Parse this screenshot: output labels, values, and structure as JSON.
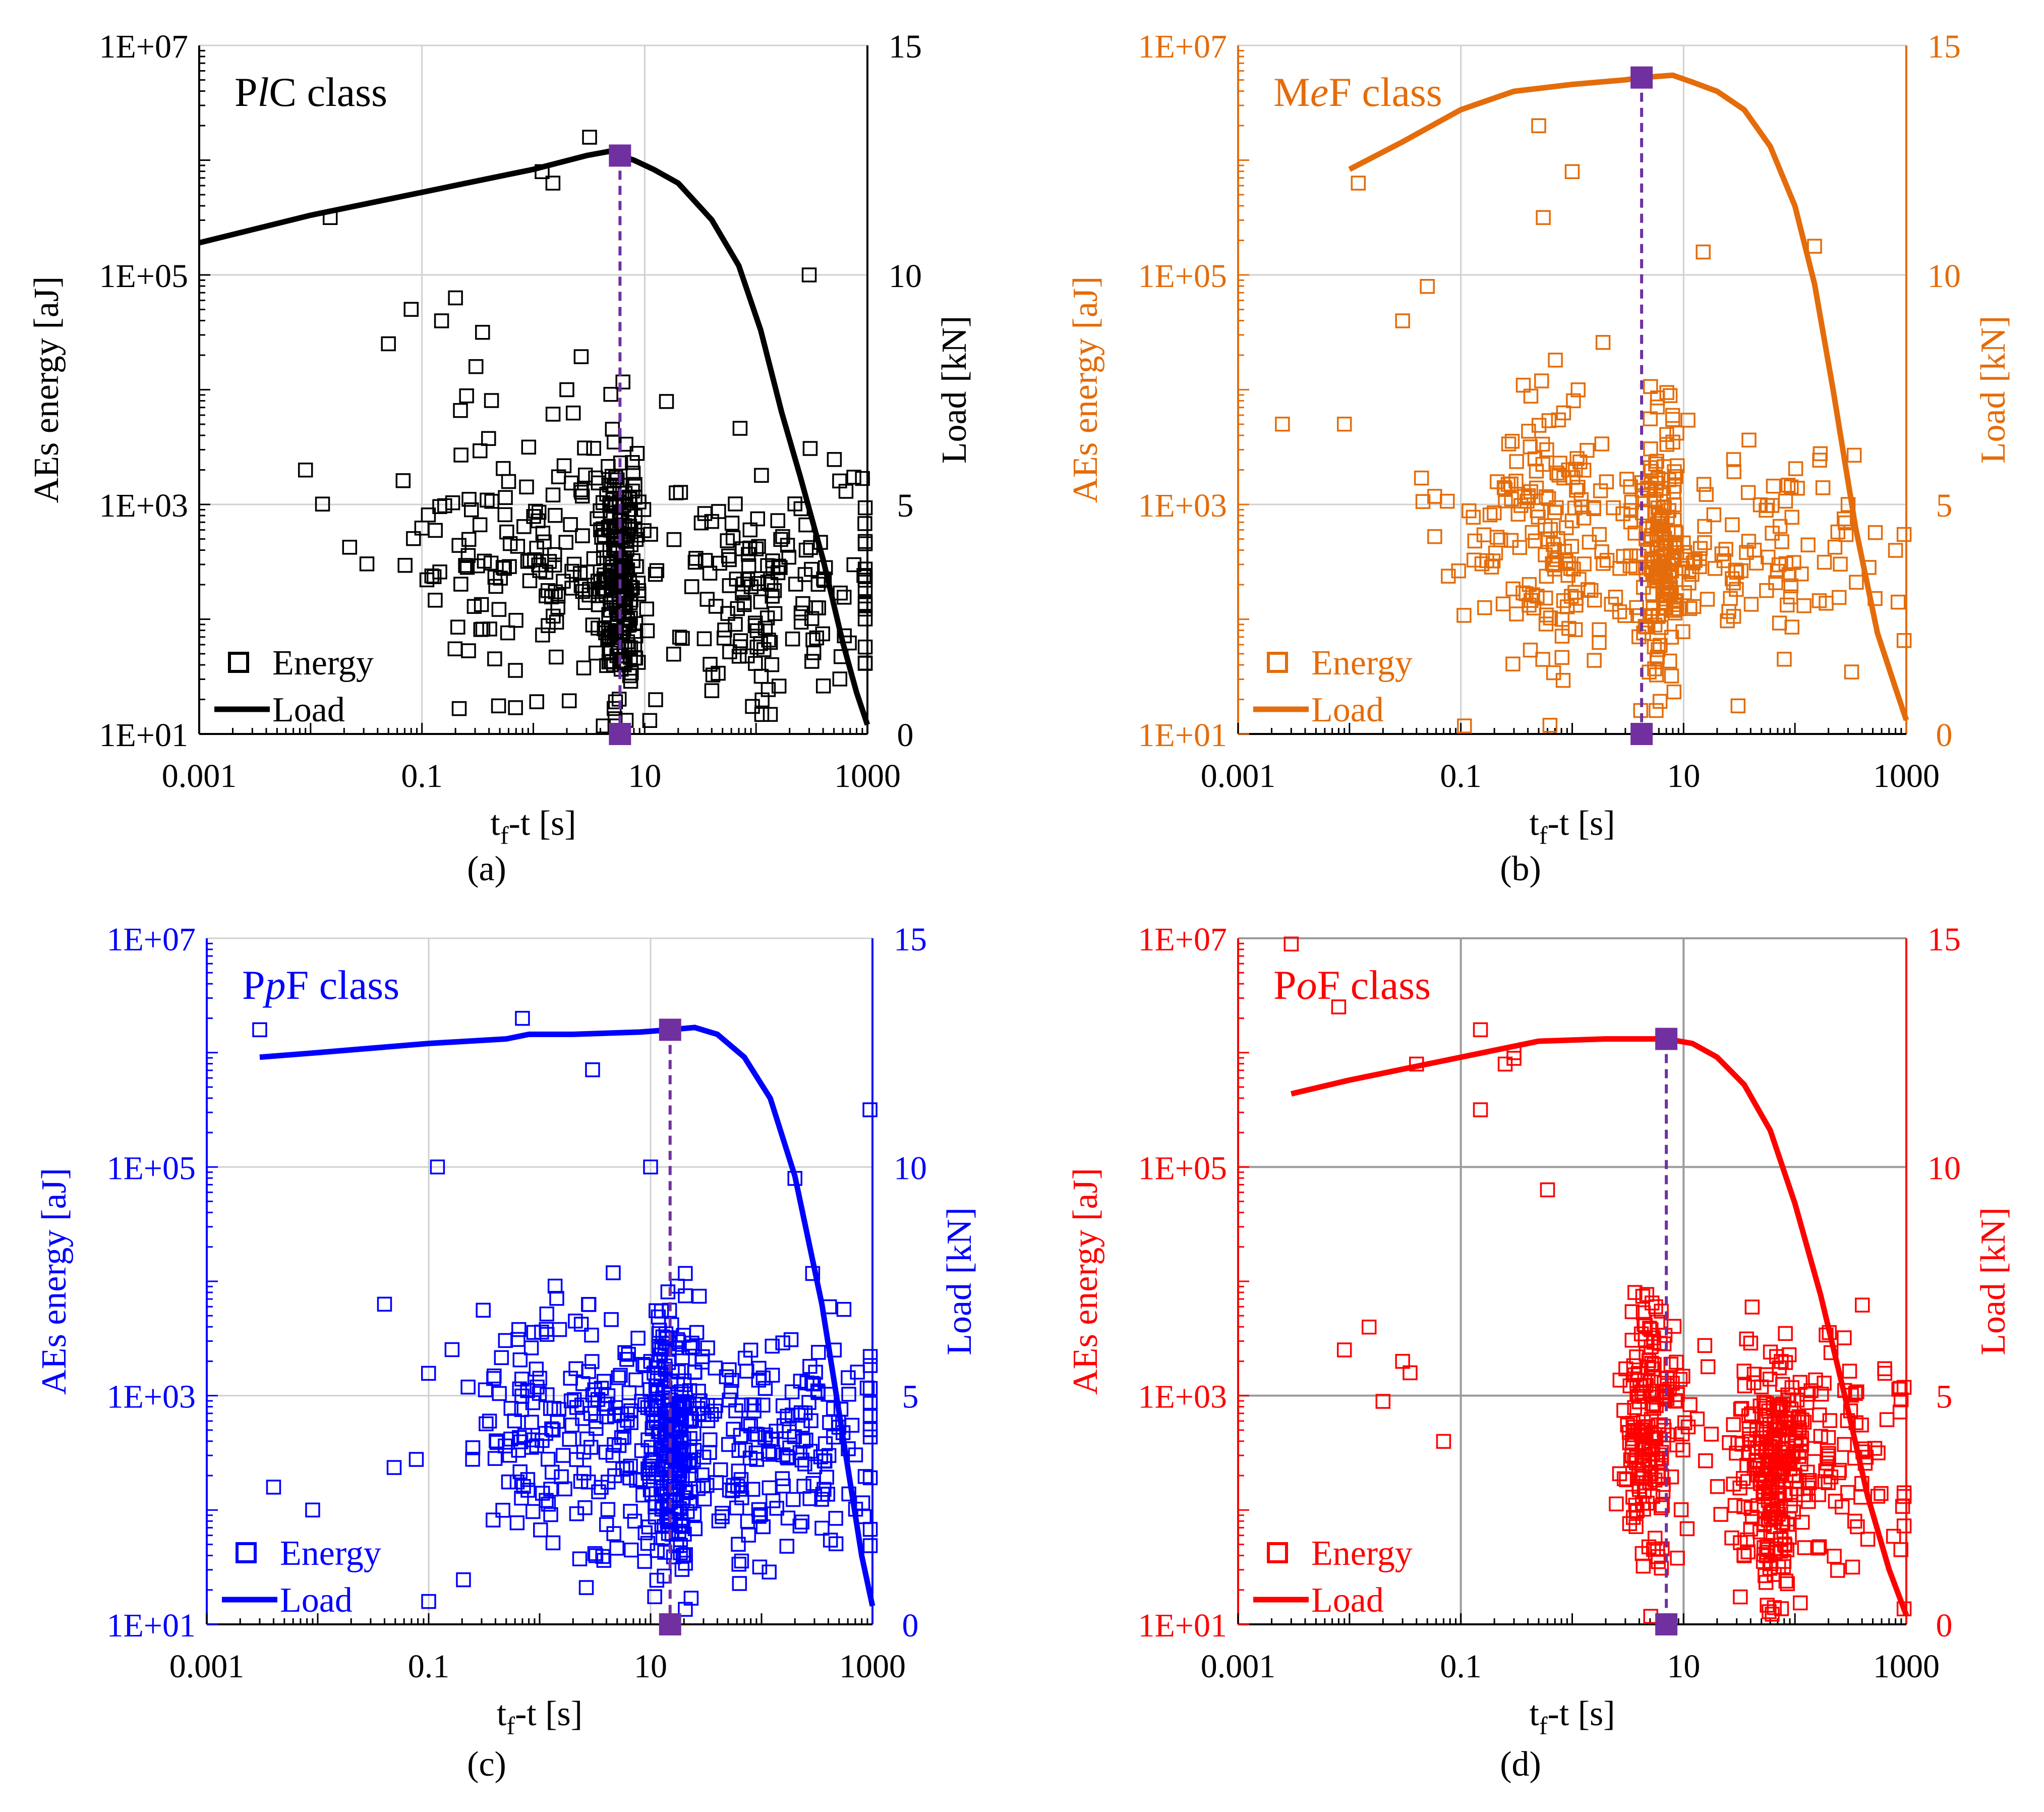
{
  "chart_data": [
    {
      "type": "scatter",
      "panel": "a",
      "caption": "(a)",
      "title_parts": [
        "P",
        "l",
        "C class"
      ],
      "color": "#000000",
      "marker_color": "#000000",
      "peak_line_color": "#7030a0",
      "xlabel": "t_f-t [s]",
      "ylabel_left": "AEs energy [aJ]",
      "ylabel_right": "Load [kN]",
      "x_scale": "log",
      "xlim": [
        0.001,
        1000
      ],
      "y_left_scale": "log",
      "ylim_left": [
        10,
        10000000
      ],
      "ylim_right": [
        0,
        15
      ],
      "x_ticks": [
        "0.001",
        "0.1",
        "10",
        "1000"
      ],
      "y_left_ticks": [
        "1E+01",
        "1E+03",
        "1E+05",
        "1E+07"
      ],
      "y_right_ticks": [
        "0",
        "5",
        "10",
        "15"
      ],
      "grid": "major",
      "legend": {
        "position": "bottom-left",
        "energy": "Energy",
        "load": "Load"
      },
      "peak": {
        "x": 6,
        "load": 12.6
      },
      "series": [
        {
          "name": "Load",
          "kind": "line",
          "x": [
            0.001,
            0.01,
            0.1,
            1,
            3,
            5,
            6,
            8,
            12,
            20,
            40,
            70,
            110,
            170,
            250,
            400,
            600,
            800,
            1000
          ],
          "y": [
            10.7,
            11.3,
            11.8,
            12.3,
            12.6,
            12.7,
            12.6,
            12.5,
            12.3,
            12.0,
            11.2,
            10.2,
            8.8,
            7.0,
            5.6,
            3.8,
            2.0,
            0.9,
            0.2
          ]
        },
        {
          "name": "Energy",
          "kind": "scatter",
          "n": 520,
          "seed": 11,
          "clusters": [
            {
              "center": 6,
              "spread_x": 0.09,
              "weight": 0.42,
              "y_mu": 2.35,
              "y_sd": 0.55
            },
            {
              "center": 1,
              "spread_x": 0.65,
              "weight": 0.32,
              "y_mu": 2.6,
              "y_sd": 0.6
            },
            {
              "center": 150,
              "spread_x": 0.55,
              "weight": 0.26,
              "y_mu": 2.3,
              "y_sd": 0.55
            }
          ],
          "outliers": [
            [
              0.015,
              5.5
            ],
            [
              0.05,
              4.4
            ],
            [
              0.08,
              4.7
            ],
            [
              0.15,
              4.6
            ],
            [
              0.2,
              4.8
            ],
            [
              0.35,
              4.5
            ],
            [
              1.2,
              5.9
            ],
            [
              1.5,
              5.8
            ],
            [
              3.2,
              6.2
            ],
            [
              300,
              5.0
            ],
            [
              0.009,
              3.3
            ],
            [
              2,
              4.0
            ],
            [
              0.6,
              3.2
            ]
          ]
        }
      ]
    },
    {
      "type": "scatter",
      "panel": "b",
      "caption": "(b)",
      "title_parts": [
        "M",
        "e",
        "F class"
      ],
      "color": "#e46c0a",
      "marker_color": "#e46c0a",
      "peak_line_color": "#7030a0",
      "xlabel": "t_f-t [s]",
      "ylabel_left": "AEs energy [aJ]",
      "ylabel_right": "Load [kN]",
      "x_scale": "log",
      "xlim": [
        0.001,
        1000
      ],
      "y_left_scale": "log",
      "ylim_left": [
        10,
        10000000
      ],
      "ylim_right": [
        0,
        15
      ],
      "x_ticks": [
        "0.001",
        "0.1",
        "10",
        "1000"
      ],
      "y_left_ticks": [
        "1E+01",
        "1E+03",
        "1E+05",
        "1E+07"
      ],
      "y_right_ticks": [
        "0",
        "5",
        "10",
        "15"
      ],
      "grid": "major",
      "legend": {
        "position": "bottom-left",
        "energy": "Energy",
        "load": "Load"
      },
      "peak": {
        "x": 4.2,
        "load": 14.3
      },
      "series": [
        {
          "name": "Load",
          "kind": "line",
          "x": [
            0.01,
            0.03,
            0.1,
            0.3,
            1,
            3,
            4.2,
            8,
            12,
            20,
            35,
            60,
            100,
            150,
            220,
            350,
            550,
            800,
            1000
          ],
          "y": [
            12.3,
            12.9,
            13.6,
            14.0,
            14.15,
            14.25,
            14.3,
            14.35,
            14.2,
            14.0,
            13.6,
            12.8,
            11.5,
            9.8,
            7.5,
            4.5,
            2.2,
            1.0,
            0.3
          ]
        },
        {
          "name": "Energy",
          "kind": "scatter",
          "n": 440,
          "seed": 23,
          "clusters": [
            {
              "center": 6.5,
              "spread_x": 0.12,
              "weight": 0.38,
              "y_mu": 2.6,
              "y_sd": 0.55
            },
            {
              "center": 0.6,
              "spread_x": 0.45,
              "weight": 0.37,
              "y_mu": 2.7,
              "y_sd": 0.6
            },
            {
              "center": 60,
              "spread_x": 0.5,
              "weight": 0.25,
              "y_mu": 2.45,
              "y_sd": 0.45
            }
          ],
          "outliers": [
            [
              0.012,
              5.8
            ],
            [
              0.03,
              4.6
            ],
            [
              0.05,
              4.9
            ],
            [
              0.5,
              6.3
            ],
            [
              1,
              5.9
            ],
            [
              0.55,
              5.5
            ],
            [
              15,
              5.2
            ],
            [
              150,
              5.25
            ],
            [
              0.0025,
              3.7
            ],
            [
              0.009,
              3.7
            ],
            [
              800,
              2.6
            ],
            [
              300,
              3.0
            ]
          ]
        }
      ]
    },
    {
      "type": "scatter",
      "panel": "c",
      "caption": "(c)",
      "title_parts": [
        "P",
        "p",
        "F class"
      ],
      "color": "#0000ff",
      "marker_color": "#0000ff",
      "peak_line_color": "#7030a0",
      "xlabel": "t_f-t [s]",
      "ylabel_left": "AEs energy [aJ]",
      "ylabel_right": "Load [kN]",
      "x_scale": "log",
      "xlim": [
        0.001,
        1000
      ],
      "y_left_scale": "log",
      "ylim_left": [
        10,
        10000000
      ],
      "ylim_right": [
        0,
        15
      ],
      "x_ticks": [
        "0.001",
        "0.1",
        "10",
        "1000"
      ],
      "y_left_ticks": [
        "1E+01",
        "1E+03",
        "1E+05",
        "1E+07"
      ],
      "y_right_ticks": [
        "0",
        "5",
        "10",
        "15"
      ],
      "grid": "major",
      "legend": {
        "position": "bottom-left",
        "energy": "Energy",
        "load": "Load"
      },
      "peak": {
        "x": 15,
        "load": 13.0
      },
      "series": [
        {
          "name": "Load",
          "kind": "line",
          "x": [
            0.003,
            0.01,
            0.1,
            0.5,
            0.8,
            2,
            8,
            15,
            25,
            40,
            70,
            120,
            200,
            350,
            550,
            800,
            1000
          ],
          "y": [
            12.4,
            12.5,
            12.7,
            12.8,
            12.9,
            12.9,
            12.95,
            13.0,
            13.05,
            12.9,
            12.4,
            11.5,
            9.8,
            7.0,
            4.0,
            1.5,
            0.4
          ]
        },
        {
          "name": "Energy",
          "kind": "scatter",
          "n": 620,
          "seed": 37,
          "clusters": [
            {
              "center": 15,
              "spread_x": 0.12,
              "weight": 0.4,
              "y_mu": 2.6,
              "y_sd": 0.55
            },
            {
              "center": 2,
              "spread_x": 0.55,
              "weight": 0.3,
              "y_mu": 2.7,
              "y_sd": 0.55
            },
            {
              "center": 150,
              "spread_x": 0.5,
              "weight": 0.3,
              "y_mu": 2.55,
              "y_sd": 0.5
            }
          ],
          "outliers": [
            [
              0.003,
              6.2
            ],
            [
              0.7,
              6.3
            ],
            [
              3,
              5.85
            ],
            [
              0.12,
              5.0
            ],
            [
              10,
              5.0
            ],
            [
              950,
              5.5
            ],
            [
              0.04,
              3.8
            ],
            [
              0.004,
              2.2
            ],
            [
              0.009,
              2.0
            ],
            [
              0.1,
              1.2
            ],
            [
              200,
              4.9
            ]
          ]
        }
      ]
    },
    {
      "type": "scatter",
      "panel": "d",
      "caption": "(d)",
      "title_parts": [
        "P",
        "o",
        "F class"
      ],
      "color": "#ff0000",
      "marker_color": "#ff0000",
      "peak_line_color": "#7030a0",
      "xlabel": "t_f-t [s]",
      "ylabel_left": "AEs energy [aJ]",
      "ylabel_right": "Load [kN]",
      "x_scale": "log",
      "xlim": [
        0.001,
        1000
      ],
      "y_left_scale": "log",
      "ylim_left": [
        10,
        10000000
      ],
      "ylim_right": [
        0,
        15
      ],
      "x_ticks": [
        "0.001",
        "0.1",
        "10",
        "1000"
      ],
      "y_left_ticks": [
        "1E+01",
        "1E+03",
        "1E+05",
        "1E+07"
      ],
      "y_right_ticks": [
        "0",
        "5",
        "10",
        "15"
      ],
      "grid": "major",
      "legend": {
        "position": "bottom-left",
        "energy": "Energy",
        "load": "Load"
      },
      "peak": {
        "x": 7,
        "load": 12.8
      },
      "series": [
        {
          "name": "Load",
          "kind": "line",
          "x": [
            0.003,
            0.01,
            0.1,
            0.5,
            2,
            5,
            7,
            12,
            20,
            35,
            60,
            100,
            170,
            280,
            450,
            700,
            1000
          ],
          "y": [
            11.6,
            11.9,
            12.4,
            12.75,
            12.8,
            12.8,
            12.8,
            12.7,
            12.4,
            11.8,
            10.8,
            9.2,
            7.2,
            5.0,
            2.8,
            1.2,
            0.2
          ]
        },
        {
          "name": "Energy",
          "kind": "scatter",
          "n": 520,
          "seed": 51,
          "clusters": [
            {
              "center": 5,
              "spread_x": 0.13,
              "weight": 0.35,
              "y_mu": 2.7,
              "y_sd": 0.6
            },
            {
              "center": 70,
              "spread_x": 0.12,
              "weight": 0.35,
              "y_mu": 2.3,
              "y_sd": 0.5
            },
            {
              "center": 150,
              "spread_x": 0.5,
              "weight": 0.3,
              "y_mu": 2.5,
              "y_sd": 0.55
            }
          ],
          "outliers": [
            [
              0.003,
              6.95
            ],
            [
              0.008,
              6.4
            ],
            [
              0.04,
              5.9
            ],
            [
              0.15,
              5.5
            ],
            [
              0.15,
              6.2
            ],
            [
              0.3,
              6.0
            ],
            [
              0.3,
              5.95
            ],
            [
              0.25,
              5.9
            ],
            [
              0.009,
              3.4
            ],
            [
              0.015,
              3.6
            ],
            [
              0.02,
              2.95
            ],
            [
              0.03,
              3.3
            ],
            [
              0.035,
              3.2
            ],
            [
              0.07,
              2.6
            ],
            [
              0.6,
              4.8
            ]
          ]
        }
      ]
    }
  ]
}
